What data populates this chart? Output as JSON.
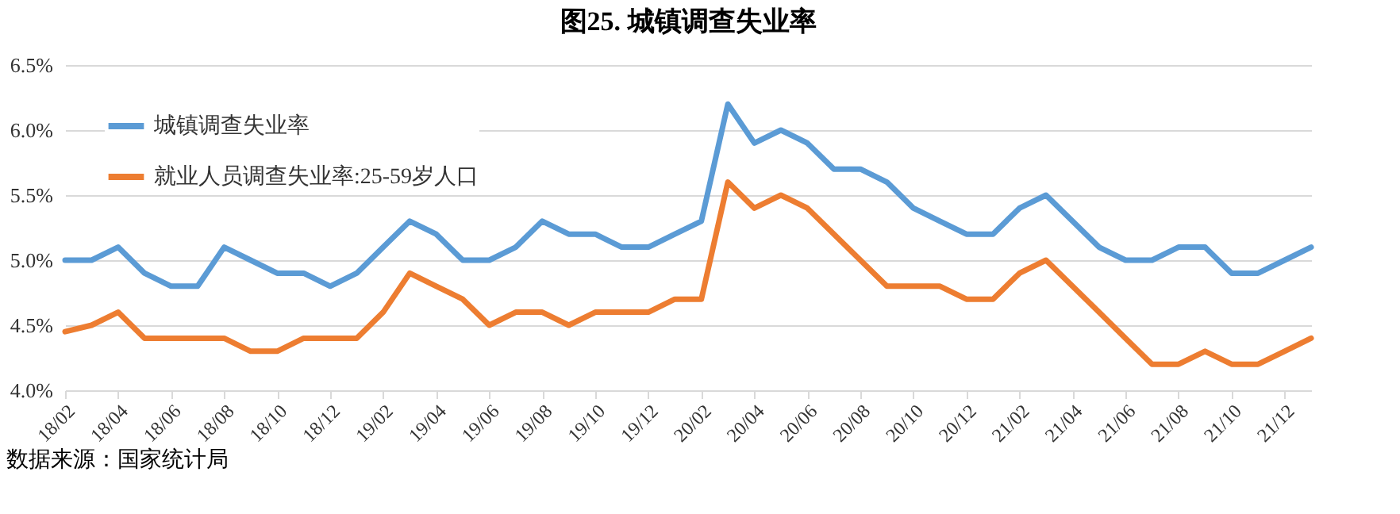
{
  "chart_data": {
    "type": "line",
    "title": "图25. 城镇调查失业率",
    "categories": [
      "18/02",
      null,
      "18/04",
      null,
      "18/06",
      null,
      "18/08",
      null,
      "18/10",
      null,
      "18/12",
      null,
      "19/02",
      null,
      "19/04",
      null,
      "19/06",
      null,
      "19/08",
      null,
      "19/10",
      null,
      "19/12",
      null,
      "20/02",
      null,
      "20/04",
      null,
      "20/06",
      null,
      "20/08",
      null,
      "20/10",
      null,
      "20/12",
      null,
      "21/02",
      null,
      "21/04",
      null,
      "21/06",
      null,
      "21/08",
      null,
      "21/10",
      null,
      "21/12",
      null
    ],
    "series": [
      {
        "name": "城镇调查失业率",
        "color": "#5b9bd5",
        "values": [
          5.0,
          5.0,
          5.1,
          4.9,
          4.8,
          4.8,
          5.1,
          5.0,
          4.9,
          4.9,
          4.8,
          4.9,
          5.1,
          5.3,
          5.2,
          5.0,
          5.0,
          5.1,
          5.3,
          5.2,
          5.2,
          5.1,
          5.1,
          5.2,
          5.3,
          6.2,
          5.9,
          6.0,
          5.9,
          5.7,
          5.7,
          5.6,
          5.4,
          5.3,
          5.2,
          5.2,
          5.4,
          5.5,
          5.3,
          5.1,
          5.0,
          5.0,
          5.1,
          5.1,
          4.9,
          4.9,
          5.0,
          5.1
        ]
      },
      {
        "name": "就业人员调查失业率:25-59岁人口",
        "color": "#ed7d31",
        "values": [
          4.45,
          4.5,
          4.6,
          4.4,
          4.4,
          4.4,
          4.4,
          4.3,
          4.3,
          4.4,
          4.4,
          4.4,
          4.6,
          4.9,
          4.8,
          4.7,
          4.5,
          4.6,
          4.6,
          4.5,
          4.6,
          4.6,
          4.6,
          4.7,
          4.7,
          5.6,
          5.4,
          5.5,
          5.4,
          5.2,
          5.0,
          4.8,
          4.8,
          4.8,
          4.7,
          4.7,
          4.9,
          5.0,
          4.8,
          4.6,
          4.4,
          4.2,
          4.2,
          4.3,
          4.2,
          4.2,
          4.3,
          4.4
        ]
      }
    ],
    "ylim": [
      4.0,
      6.5
    ],
    "yticks": [
      {
        "value": 4.0,
        "label": "4.0%"
      },
      {
        "value": 4.5,
        "label": "4.5%"
      },
      {
        "value": 5.0,
        "label": "5.0%"
      },
      {
        "value": 5.5,
        "label": "5.5%"
      },
      {
        "value": 6.0,
        "label": "6.0%"
      },
      {
        "value": 6.5,
        "label": "6.5%"
      }
    ],
    "grid": "y",
    "legend": "top left",
    "line_style": "solid",
    "annotations": [
      "数据来源：国家统计局"
    ]
  }
}
